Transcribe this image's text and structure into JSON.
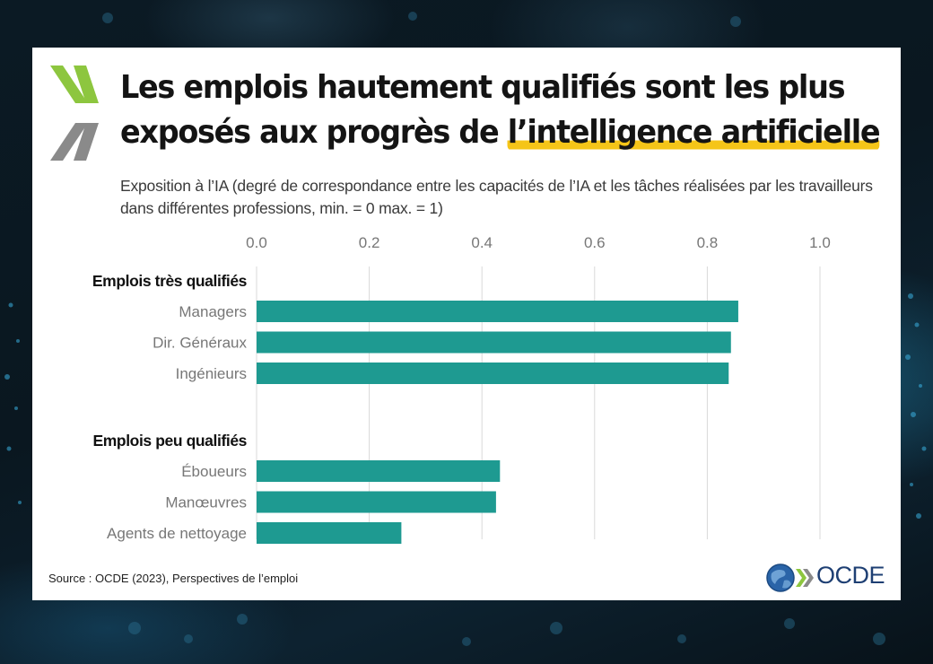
{
  "header": {
    "title_line1": "Les emplois hautement qualifiés sont les plus",
    "title_line2_plain": "exposés aux progrès de ",
    "title_line2_highlight": "l’intelligence artificielle",
    "subtitle": "Exposition à l’IA (degré de correspondance entre les capacités de l’IA et les tâches réalisées par les travailleurs dans différentes professions, min. = 0 max. = 1)"
  },
  "footer": {
    "source": "Source : OCDE (2023), Perspectives de l’emploi",
    "brand": "OCDE"
  },
  "colors": {
    "bar": "#1e9a91",
    "grid": "#d9d9d9",
    "highlight": "#f5c518",
    "chevron_green": "#8dc63f",
    "chevron_gray": "#8a8a8a"
  },
  "chart_data": {
    "type": "bar",
    "orientation": "horizontal",
    "xlim": [
      0,
      1
    ],
    "xticks": [
      "0.0",
      "0.2",
      "0.4",
      "0.6",
      "0.8",
      "1.0"
    ],
    "grid": true,
    "groups": [
      {
        "label": "Emplois très qualifiés",
        "categories": [
          "Managers",
          "Dir. Généraux",
          "Ingénieurs"
        ],
        "values": [
          0.855,
          0.842,
          0.838
        ]
      },
      {
        "label": "Emplois peu qualifiés",
        "categories": [
          "Éboueurs",
          "Manœuvres",
          "Agents de nettoyage"
        ],
        "values": [
          0.432,
          0.425,
          0.257
        ]
      }
    ]
  }
}
